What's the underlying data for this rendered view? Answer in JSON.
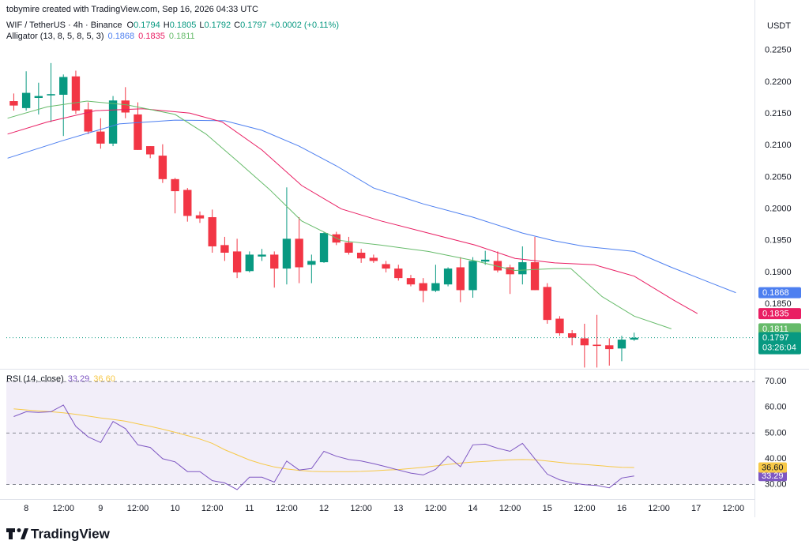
{
  "header": {
    "attribution": "tobymire created with TradingView.com, Sep 16, 2026 04:33 UTC"
  },
  "footer": {
    "logo": "TradingView"
  },
  "chart_data": [
    {
      "type": "candlestick",
      "title": "WIF / TetherUS · 4h · Binance",
      "ohlc_letters": [
        "O",
        "H",
        "L",
        "C"
      ],
      "change": "+0.0002 (+0.11%)",
      "currency": "USDT",
      "countdown": "03:26:04",
      "up_color": "#089981",
      "down_color": "#f23645",
      "open": [
        0.217,
        0.2159,
        0.2175,
        0.2179,
        0.218,
        0.2209,
        0.2157,
        0.2122,
        0.2103,
        0.2171,
        0.2149,
        0.2099,
        0.2084,
        0.2047,
        0.203,
        0.199,
        0.1987,
        0.1943,
        0.1933,
        0.1902,
        0.1925,
        0.1928,
        0.1906,
        0.1953,
        0.1912,
        0.1916,
        0.196,
        0.1947,
        0.1931,
        0.1923,
        0.1913,
        0.1906,
        0.1891,
        0.1883,
        0.1871,
        0.1881,
        0.1908,
        0.1872,
        0.1917,
        0.1918,
        0.1908,
        0.1897,
        0.1916,
        0.1877,
        0.1827,
        0.1804,
        0.1796,
        0.1786,
        0.1785,
        0.178,
        0.1794
      ],
      "high": [
        0.2182,
        0.2217,
        0.2199,
        0.223,
        0.2212,
        0.2218,
        0.2168,
        0.2143,
        0.2178,
        0.2192,
        0.2168,
        0.2099,
        0.2102,
        0.2049,
        0.2033,
        0.1996,
        0.1999,
        0.1956,
        0.1953,
        0.1933,
        0.1937,
        0.1933,
        0.2034,
        0.1987,
        0.1928,
        0.1964,
        0.1964,
        0.1956,
        0.1937,
        0.1928,
        0.1918,
        0.1912,
        0.1896,
        0.1891,
        0.1912,
        0.1908,
        0.1924,
        0.1924,
        0.1934,
        0.1933,
        0.1912,
        0.1941,
        0.1956,
        0.1883,
        0.1831,
        0.1809,
        0.1819,
        0.1833,
        0.1796,
        0.18,
        0.1805
      ],
      "low": [
        0.2155,
        0.2155,
        0.2149,
        0.2137,
        0.2115,
        0.215,
        0.2118,
        0.2095,
        0.2099,
        0.2143,
        0.2093,
        0.208,
        0.2041,
        0.1993,
        0.198,
        0.1978,
        0.1931,
        0.1918,
        0.1891,
        0.19,
        0.1918,
        0.1876,
        0.1881,
        0.1883,
        0.1883,
        0.1915,
        0.1943,
        0.1928,
        0.1915,
        0.1915,
        0.19,
        0.1887,
        0.1878,
        0.1853,
        0.1869,
        0.1878,
        0.1853,
        0.186,
        0.1912,
        0.19,
        0.1866,
        0.1881,
        0.1872,
        0.1819,
        0.18,
        0.1785,
        0.175,
        0.175,
        0.1753,
        0.176,
        0.1792
      ],
      "close": [
        0.2163,
        0.2183,
        0.2178,
        0.2181,
        0.2208,
        0.2155,
        0.2122,
        0.2103,
        0.2171,
        0.2152,
        0.2093,
        0.2086,
        0.2047,
        0.2028,
        0.1989,
        0.1985,
        0.1941,
        0.1931,
        0.19,
        0.1928,
        0.1928,
        0.1906,
        0.1953,
        0.1908,
        0.1918,
        0.1962,
        0.1947,
        0.1931,
        0.1922,
        0.1918,
        0.1906,
        0.1891,
        0.1881,
        0.1871,
        0.1883,
        0.1906,
        0.1872,
        0.1918,
        0.192,
        0.1903,
        0.1897,
        0.1916,
        0.1872,
        0.1825,
        0.1804,
        0.1797,
        0.1785,
        0.1784,
        0.1779,
        0.1794,
        0.1797
      ],
      "indicator": {
        "name": "Alligator (13, 8, 5, 8, 5, 3)",
        "series": [
          {
            "color": "#4d7ff0",
            "x": [
              -0.5,
              4,
              8.5,
              13,
              17,
              20,
              23,
              26,
              29,
              33,
              37,
              41,
              43.5,
              46,
              50,
              53,
              56.5,
              58.2
            ],
            "values": [
              0.208,
              0.2108,
              0.2134,
              0.214,
              0.2139,
              0.2124,
              0.2099,
              0.2068,
              0.2033,
              0.2008,
              0.1987,
              0.1962,
              0.195,
              0.1941,
              0.1933,
              0.1908,
              0.1881,
              0.1868
            ]
          },
          {
            "color": "#e91e63",
            "x": [
              -0.5,
              2.7,
              6.6,
              10.4,
              14.2,
              16.8,
              20,
              23.2,
              26.4,
              29.6,
              33.4,
              37.2,
              40.4,
              43.6,
              46.8,
              50,
              53.2,
              55.1
            ],
            "values": [
              0.2118,
              0.2137,
              0.2155,
              0.2158,
              0.2151,
              0.2137,
              0.2093,
              0.2037,
              0.2,
              0.1981,
              0.1962,
              0.1943,
              0.1922,
              0.1915,
              0.1912,
              0.1894,
              0.1856,
              0.1835
            ]
          },
          {
            "color": "#66bb6a",
            "x": [
              -0.5,
              2.7,
              5.9,
              9.1,
              13,
              15.5,
              18.1,
              20.6,
              23.2,
              26.4,
              29.6,
              33.4,
              37.2,
              40.4,
              43.6,
              44.9,
              47.4,
              50,
              53
            ],
            "values": [
              0.2143,
              0.2161,
              0.217,
              0.2164,
              0.2149,
              0.2118,
              0.2074,
              0.2031,
              0.1981,
              0.195,
              0.1943,
              0.1933,
              0.1918,
              0.1903,
              0.1906,
              0.1906,
              0.1862,
              0.1831,
              0.1811
            ]
          }
        ]
      },
      "ylim": [
        0.1748,
        0.2302
      ],
      "yticks": [
        {
          "value": 0.225,
          "label": "0.2250"
        },
        {
          "value": 0.22,
          "label": "0.2200"
        },
        {
          "value": 0.215,
          "label": "0.2150"
        },
        {
          "value": 0.21,
          "label": "0.2100"
        },
        {
          "value": 0.205,
          "label": "0.2050"
        },
        {
          "value": 0.2,
          "label": "0.2000"
        },
        {
          "value": 0.195,
          "label": "0.1950"
        },
        {
          "value": 0.19,
          "label": "0.1900"
        },
        {
          "value": 0.185,
          "label": "0.1850"
        }
      ],
      "xlim": [
        -0.6,
        59.7
      ],
      "xticks": [
        {
          "value": 1,
          "label": "8"
        },
        {
          "value": 4,
          "label": "12:00"
        },
        {
          "value": 7,
          "label": "9"
        },
        {
          "value": 10,
          "label": "12:00"
        },
        {
          "value": 13,
          "label": "10"
        },
        {
          "value": 16,
          "label": "12:00"
        },
        {
          "value": 19,
          "label": "11"
        },
        {
          "value": 22,
          "label": "12:00"
        },
        {
          "value": 25,
          "label": "12"
        },
        {
          "value": 28,
          "label": "12:00"
        },
        {
          "value": 31,
          "label": "13"
        },
        {
          "value": 34,
          "label": "12:00"
        },
        {
          "value": 37,
          "label": "14"
        },
        {
          "value": 40,
          "label": "12:00"
        },
        {
          "value": 43,
          "label": "15"
        },
        {
          "value": 46,
          "label": "12:00"
        },
        {
          "value": 49,
          "label": "16"
        },
        {
          "value": 52,
          "label": "12:00"
        },
        {
          "value": 55,
          "label": "17"
        },
        {
          "value": 58,
          "label": "12:00"
        }
      ]
    },
    {
      "type": "line",
      "title": "RSI (14, close)",
      "series": [
        {
          "color": "#7e57c2",
          "values": [
            56.4,
            58.3,
            58.0,
            58.3,
            60.9,
            52.6,
            48.5,
            46.3,
            54.5,
            51.7,
            45.4,
            44.4,
            40.0,
            38.8,
            35.0,
            35.0,
            31.5,
            30.6,
            28.0,
            32.8,
            32.8,
            30.9,
            39.1,
            35.6,
            36.2,
            42.9,
            41.0,
            39.7,
            39.1,
            38.1,
            36.9,
            35.6,
            34.4,
            33.7,
            35.9,
            41.0,
            36.9,
            45.4,
            45.7,
            44.1,
            42.9,
            46.0,
            40.0,
            34.0,
            31.8,
            30.6,
            29.9,
            29.6,
            28.7,
            32.5,
            33.29
          ]
        },
        {
          "color": "#f7c948",
          "last_label": "36.60",
          "values": [
            59.4,
            59.0,
            58.6,
            58.3,
            57.9,
            57.3,
            56.6,
            55.9,
            55.3,
            54.6,
            53.6,
            52.6,
            51.5,
            50.3,
            49.0,
            47.7,
            46.0,
            43.5,
            41.5,
            39.5,
            38.0,
            36.8,
            36.0,
            35.5,
            35.1,
            35.0,
            35.0,
            35.0,
            35.1,
            35.3,
            35.6,
            35.8,
            36.2,
            36.7,
            37.2,
            37.8,
            38.3,
            38.7,
            39.0,
            39.3,
            39.6,
            39.7,
            39.6,
            39.1,
            38.6,
            38.1,
            37.8,
            37.4,
            37.0,
            36.7,
            36.6
          ]
        }
      ],
      "levels": [
        70,
        50,
        30
      ],
      "band_color": "#7e57c2",
      "ylim": [
        24.3,
        74.7
      ],
      "yticks": [
        {
          "value": 70,
          "label": "70.00"
        },
        {
          "value": 60,
          "label": "60.00"
        },
        {
          "value": 50,
          "label": "50.00"
        },
        {
          "value": 40,
          "label": "40.00"
        },
        {
          "value": 30,
          "label": "30.00"
        }
      ]
    }
  ]
}
